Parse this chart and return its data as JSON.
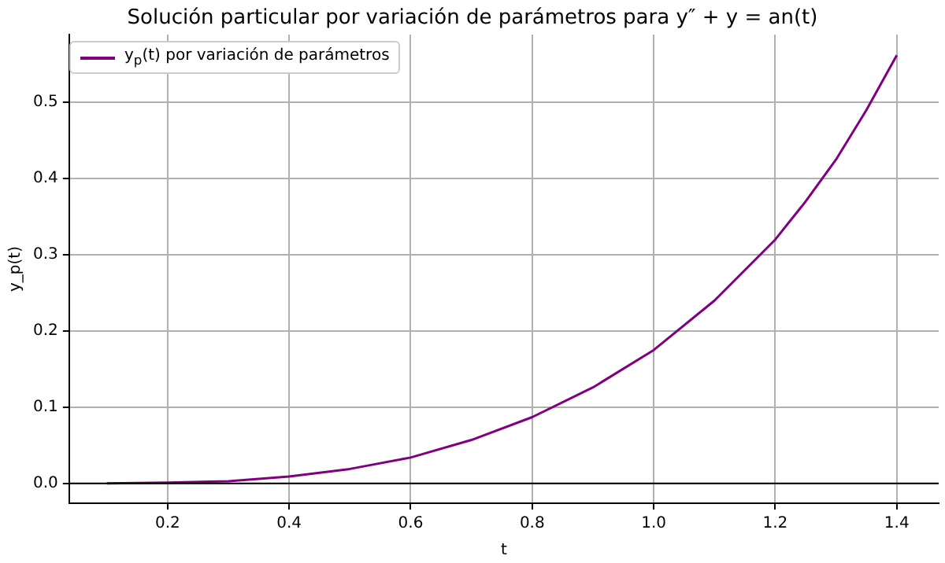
{
  "chart_data": {
    "type": "line",
    "title": "Solución particular por variación de parámetros para y″ + y = an(t)",
    "xlabel": "t",
    "ylabel": "y_p(t)",
    "x": [
      0.1,
      0.2,
      0.3,
      0.4,
      0.5,
      0.6,
      0.7,
      0.8,
      0.9,
      1.0,
      1.1,
      1.2,
      1.25,
      1.3,
      1.35,
      1.4
    ],
    "series": [
      {
        "name": "y$_{p}$(t) por variación de parámetros",
        "color": "#800080",
        "values": [
          0,
          0.001,
          0.003,
          0.009,
          0.019,
          0.034,
          0.057,
          0.087,
          0.126,
          0.175,
          0.24,
          0.32,
          0.37,
          0.425,
          0.49,
          0.562
        ]
      }
    ],
    "xlim": [
      0.038,
      1.469
    ],
    "xticks": [
      0.2,
      0.4,
      0.6,
      0.8,
      {
        "value": 1,
        "label": "1.0"
      },
      1.2,
      1.4
    ],
    "ylim": [
      -0.026,
      0.589
    ],
    "yticks": [
      {
        "value": 0,
        "label": "0.0"
      },
      0.1,
      0.2,
      0.3,
      0.4,
      0.5
    ],
    "ref_lines": [
      {
        "axis": "y",
        "value": 0,
        "color": "#000000"
      }
    ],
    "grid": true,
    "legend": "top left",
    "marker": "none",
    "line_style": "solid"
  }
}
